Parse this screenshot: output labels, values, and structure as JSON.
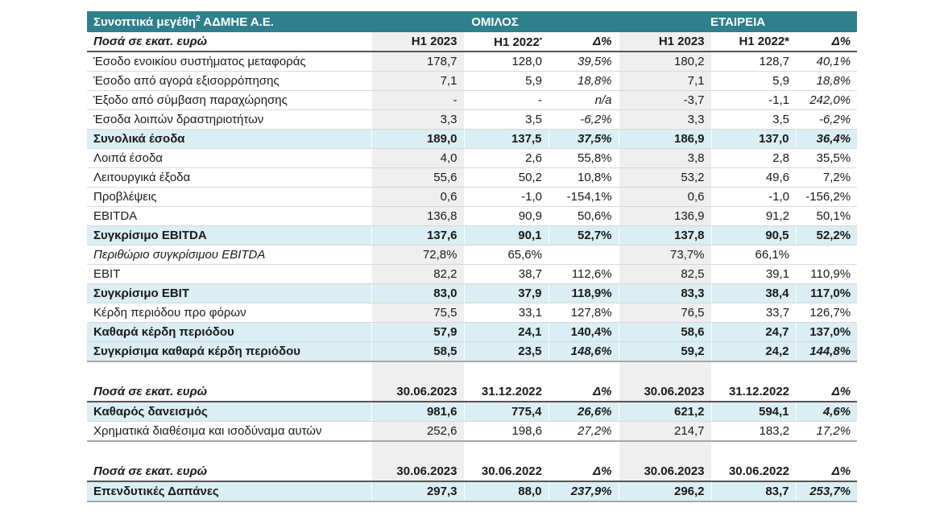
{
  "title": {
    "main": "Συνοπτικά μεγέθη",
    "footnote": "2",
    "suffix": " ΑΔΜΗΕ Α.Ε."
  },
  "group_label": "ΟΜΙΛΟΣ",
  "company_label": "ΕΤΑΙΡΕΙΑ",
  "colors": {
    "accent_teal": "#2e808d",
    "highlight_blue": "#daeef3",
    "band_gray": "#efefef",
    "row_border": "#d9d9d9"
  },
  "sections": [
    {
      "header": {
        "label": "Ποσά σε εκατ. ευρώ",
        "cols": [
          "H1 2023",
          "H1 2022•",
          "Δ%",
          "H1 2023",
          "H1 2022*",
          "Δ%"
        ]
      },
      "rows": [
        {
          "label": "Έσοδο ενοικίου συστήματος μεταφοράς",
          "values": [
            "178,7",
            "128,0",
            "39,5%",
            "180,2",
            "128,7",
            "40,1%"
          ],
          "bold": false,
          "italic_label": false,
          "italic_delta": true
        },
        {
          "label": "Έσοδο από αγορά εξισορρόπησης",
          "values": [
            "7,1",
            "5,9",
            "18,8%",
            "7,1",
            "5,9",
            "18,8%"
          ],
          "bold": false,
          "italic_label": false,
          "italic_delta": true
        },
        {
          "label": "Έξοδο από σύμβαση παραχώρησης",
          "values": [
            "-",
            "-",
            "n/a",
            "-3,7",
            "-1,1",
            "242,0%"
          ],
          "bold": false,
          "italic_label": false,
          "italic_delta": true
        },
        {
          "label": "Έσοδα λοιπών δραστηριοτήτων",
          "values": [
            "3,3",
            "3,5",
            "-6,2%",
            "3,3",
            "3,5",
            "-6,2%"
          ],
          "bold": false,
          "italic_label": false,
          "italic_delta": true
        },
        {
          "label": "Συνολικά έσοδα",
          "values": [
            "189,0",
            "137,5",
            "37,5%",
            "186,9",
            "137,0",
            "36,4%"
          ],
          "bold": true,
          "italic_label": false,
          "italic_delta": true
        },
        {
          "label": "Λοιπά έσοδα",
          "values": [
            "4,0",
            "2,6",
            "55,8%",
            "3,8",
            "2,8",
            "35,5%"
          ],
          "bold": false,
          "italic_label": false,
          "italic_delta": false
        },
        {
          "label": "Λειτουργικά έξοδα",
          "values": [
            "55,6",
            "50,2",
            "10,8%",
            "53,2",
            "49,6",
            "7,2%"
          ],
          "bold": false,
          "italic_label": false,
          "italic_delta": false
        },
        {
          "label": "Προβλέψεις",
          "values": [
            "0,6",
            "-1,0",
            "-154,1%",
            "0,6",
            "-1,0",
            "-156,2%"
          ],
          "bold": false,
          "italic_label": false,
          "italic_delta": false
        },
        {
          "label": "EBITDA",
          "values": [
            "136,8",
            "90,9",
            "50,6%",
            "136,9",
            "91,2",
            "50,1%"
          ],
          "bold": false,
          "italic_label": false,
          "italic_delta": false
        },
        {
          "label": "Συγκρίσιμο EBITDA",
          "values": [
            "137,6",
            "90,1",
            "52,7%",
            "137,8",
            "90,5",
            "52,2%"
          ],
          "bold": true,
          "italic_label": false,
          "italic_delta": false
        },
        {
          "label": "Περιθώριο συγκρίσιμου EBITDA",
          "values": [
            "72,8%",
            "65,6%",
            "",
            "73,7%",
            "66,1%",
            ""
          ],
          "bold": false,
          "italic_label": true,
          "italic_delta": false
        },
        {
          "label": "EBIT",
          "values": [
            "82,2",
            "38,7",
            "112,6%",
            "82,5",
            "39,1",
            "110,9%"
          ],
          "bold": false,
          "italic_label": false,
          "italic_delta": false
        },
        {
          "label": "Συγκρίσιμο EBIT",
          "values": [
            "83,0",
            "37,9",
            "118,9%",
            "83,3",
            "38,4",
            "117,0%"
          ],
          "bold": true,
          "italic_label": false,
          "italic_delta": false
        },
        {
          "label": "Κέρδη περιόδου προ φόρων",
          "values": [
            "75,5",
            "33,1",
            "127,8%",
            "76,5",
            "33,7",
            "126,7%"
          ],
          "bold": false,
          "italic_label": false,
          "italic_delta": false
        },
        {
          "label": "Καθαρά κέρδη περιόδου",
          "values": [
            "57,9",
            "24,1",
            "140,4%",
            "58,6",
            "24,7",
            "137,0%"
          ],
          "bold": true,
          "italic_label": false,
          "italic_delta": false
        },
        {
          "label": "Συγκρίσιμα καθαρά κέρδη περιόδου",
          "values": [
            "58,5",
            "23,5",
            "148,6%",
            "59,2",
            "24,2",
            "144,8%"
          ],
          "bold": true,
          "italic_label": false,
          "italic_delta": true
        }
      ]
    },
    {
      "header": {
        "label": "Ποσά σε εκατ. ευρώ",
        "cols": [
          "30.06.2023",
          "31.12.2022",
          "Δ%",
          "30.06.2023",
          "31.12.2022",
          "Δ%"
        ]
      },
      "rows": [
        {
          "label": "Καθαρός δανεισμός",
          "values": [
            "981,6",
            "775,4",
            "26,6%",
            "621,2",
            "594,1",
            "4,6%"
          ],
          "bold": true,
          "italic_label": false,
          "italic_delta": true
        },
        {
          "label": "Χρηματικά διαθέσιμα και ισοδύναμα αυτών",
          "values": [
            "252,6",
            "198,6",
            "27,2%",
            "214,7",
            "183,2",
            "17,2%"
          ],
          "bold": false,
          "italic_label": false,
          "italic_delta": true
        }
      ]
    },
    {
      "header": {
        "label": "Ποσά σε εκατ. ευρώ",
        "cols": [
          "30.06.2023",
          "30.06.2022",
          "Δ%",
          "30.06.2023",
          "30.06.2022",
          "Δ%"
        ]
      },
      "rows": [
        {
          "label": "Επενδυτικές Δαπάνες",
          "values": [
            "297,3",
            "88,0",
            "237,9%",
            "296,2",
            "83,7",
            "253,7%"
          ],
          "bold": true,
          "italic_label": false,
          "italic_delta": true
        }
      ]
    }
  ]
}
